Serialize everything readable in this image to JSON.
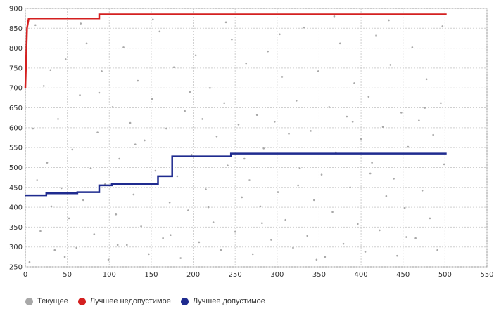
{
  "chart_data": {
    "type": "scatter",
    "xlim": [
      0,
      550
    ],
    "ylim": [
      250,
      900
    ],
    "x_ticks": [
      "0",
      "50",
      "100",
      "150",
      "200",
      "250",
      "300",
      "350",
      "400",
      "450",
      "500",
      "550"
    ],
    "y_ticks": [
      "900",
      "850",
      "800",
      "750",
      "700",
      "650",
      "600",
      "550",
      "500",
      "450",
      "400",
      "350",
      "300",
      "250"
    ],
    "grid": true,
    "legend_position": "bottom-left",
    "series": [
      {
        "name": "Текущее",
        "kind": "scatter",
        "color": "#a8a8a8",
        "points": [
          [
            5,
            262
          ],
          [
            9,
            598
          ],
          [
            14,
            468
          ],
          [
            18,
            340
          ],
          [
            22,
            705
          ],
          [
            26,
            512
          ],
          [
            31,
            402
          ],
          [
            35,
            292
          ],
          [
            39,
            622
          ],
          [
            43,
            448
          ],
          [
            48,
            772
          ],
          [
            52,
            372
          ],
          [
            56,
            545
          ],
          [
            61,
            298
          ],
          [
            65,
            682
          ],
          [
            69,
            418
          ],
          [
            73,
            812
          ],
          [
            78,
            498
          ],
          [
            82,
            332
          ],
          [
            86,
            588
          ],
          [
            91,
            742
          ],
          [
            95,
            458
          ],
          [
            99,
            268
          ],
          [
            104,
            652
          ],
          [
            108,
            382
          ],
          [
            112,
            522
          ],
          [
            117,
            802
          ],
          [
            121,
            305
          ],
          [
            125,
            612
          ],
          [
            129,
            432
          ],
          [
            134,
            718
          ],
          [
            138,
            352
          ],
          [
            142,
            568
          ],
          [
            147,
            282
          ],
          [
            151,
            672
          ],
          [
            155,
            492
          ],
          [
            160,
            842
          ],
          [
            164,
            322
          ],
          [
            168,
            598
          ],
          [
            172,
            412
          ],
          [
            177,
            752
          ],
          [
            181,
            478
          ],
          [
            185,
            272
          ],
          [
            190,
            642
          ],
          [
            194,
            392
          ],
          [
            198,
            532
          ],
          [
            203,
            782
          ],
          [
            207,
            312
          ],
          [
            211,
            622
          ],
          [
            215,
            445
          ],
          [
            220,
            700
          ],
          [
            224,
            362
          ],
          [
            228,
            578
          ],
          [
            233,
            292
          ],
          [
            237,
            662
          ],
          [
            241,
            505
          ],
          [
            246,
            822
          ],
          [
            250,
            338
          ],
          [
            254,
            608
          ],
          [
            258,
            425
          ],
          [
            263,
            762
          ],
          [
            267,
            468
          ],
          [
            271,
            282
          ],
          [
            276,
            632
          ],
          [
            280,
            402
          ],
          [
            284,
            548
          ],
          [
            289,
            792
          ],
          [
            293,
            318
          ],
          [
            297,
            615
          ],
          [
            301,
            438
          ],
          [
            306,
            728
          ],
          [
            310,
            368
          ],
          [
            314,
            585
          ],
          [
            319,
            298
          ],
          [
            323,
            668
          ],
          [
            327,
            498
          ],
          [
            332,
            852
          ],
          [
            336,
            328
          ],
          [
            340,
            592
          ],
          [
            344,
            418
          ],
          [
            349,
            742
          ],
          [
            353,
            482
          ],
          [
            357,
            275
          ],
          [
            362,
            652
          ],
          [
            366,
            388
          ],
          [
            370,
            538
          ],
          [
            375,
            812
          ],
          [
            379,
            308
          ],
          [
            383,
            628
          ],
          [
            387,
            450
          ],
          [
            392,
            712
          ],
          [
            396,
            358
          ],
          [
            400,
            572
          ],
          [
            405,
            288
          ],
          [
            409,
            678
          ],
          [
            413,
            512
          ],
          [
            418,
            832
          ],
          [
            422,
            342
          ],
          [
            426,
            602
          ],
          [
            430,
            428
          ],
          [
            435,
            758
          ],
          [
            439,
            472
          ],
          [
            443,
            278
          ],
          [
            448,
            638
          ],
          [
            452,
            398
          ],
          [
            456,
            552
          ],
          [
            461,
            802
          ],
          [
            465,
            322
          ],
          [
            469,
            618
          ],
          [
            473,
            442
          ],
          [
            478,
            722
          ],
          [
            482,
            372
          ],
          [
            486,
            582
          ],
          [
            491,
            292
          ],
          [
            495,
            662
          ],
          [
            499,
            508
          ],
          [
            12,
            858
          ],
          [
            30,
            745
          ],
          [
            47,
            275
          ],
          [
            66,
            862
          ],
          [
            88,
            688
          ],
          [
            110,
            305
          ],
          [
            131,
            558
          ],
          [
            152,
            872
          ],
          [
            173,
            330
          ],
          [
            196,
            690
          ],
          [
            218,
            400
          ],
          [
            239,
            865
          ],
          [
            261,
            522
          ],
          [
            282,
            360
          ],
          [
            303,
            835
          ],
          [
            325,
            455
          ],
          [
            347,
            268
          ],
          [
            368,
            880
          ],
          [
            390,
            615
          ],
          [
            411,
            485
          ],
          [
            433,
            870
          ],
          [
            454,
            325
          ],
          [
            476,
            650
          ],
          [
            497,
            855
          ]
        ]
      },
      {
        "name": "Лучшее недопустимое",
        "kind": "step",
        "color": "#d42020",
        "points": [
          [
            0,
            700
          ],
          [
            2,
            850
          ],
          [
            4,
            875
          ],
          [
            88,
            875
          ],
          [
            88,
            885
          ],
          [
            502,
            885
          ]
        ]
      },
      {
        "name": "Лучшее допустимое",
        "kind": "step",
        "color": "#1f2b8f",
        "points": [
          [
            0,
            430
          ],
          [
            25,
            430
          ],
          [
            25,
            435
          ],
          [
            62,
            435
          ],
          [
            62,
            438
          ],
          [
            88,
            438
          ],
          [
            88,
            455
          ],
          [
            103,
            455
          ],
          [
            103,
            458
          ],
          [
            158,
            458
          ],
          [
            158,
            478
          ],
          [
            175,
            478
          ],
          [
            175,
            528
          ],
          [
            245,
            528
          ],
          [
            245,
            535
          ],
          [
            502,
            535
          ]
        ]
      }
    ]
  }
}
